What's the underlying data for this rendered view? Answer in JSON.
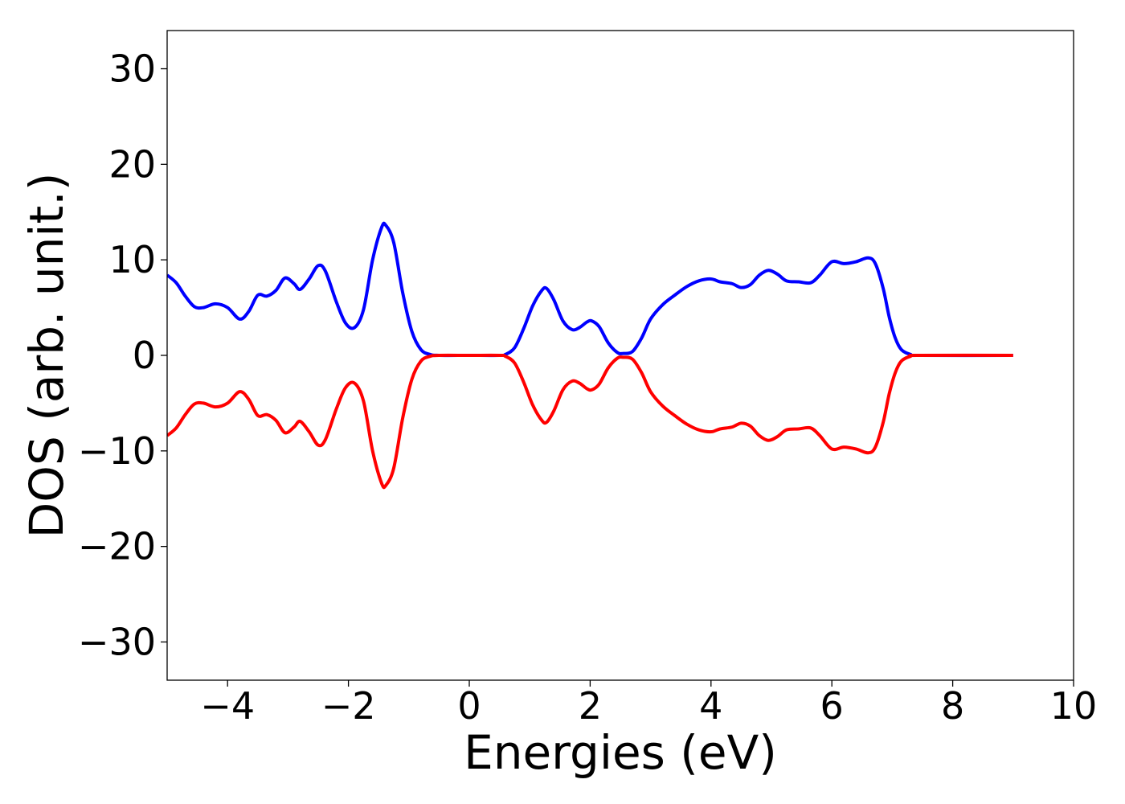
{
  "chart_data": {
    "type": "line",
    "title": "",
    "xlabel": "Energies (eV)",
    "ylabel": "DOS (arb. unit.)",
    "xlim": [
      -5,
      10
    ],
    "ylim": [
      -34,
      34
    ],
    "xticks": [
      -4,
      -2,
      0,
      2,
      4,
      6,
      8,
      10
    ],
    "yticks": [
      -30,
      -20,
      -10,
      0,
      10,
      20,
      30
    ],
    "xtick_labels": [
      "−4",
      "−2",
      "0",
      "2",
      "4",
      "6",
      "8",
      "10"
    ],
    "ytick_labels": [
      "−30",
      "−20",
      "−10",
      "0",
      "10",
      "20",
      "30"
    ],
    "grid": false,
    "legend": "none",
    "series": [
      {
        "color": "#0000ff",
        "points": [
          [
            -5.0,
            8.4
          ],
          [
            -4.85,
            7.6
          ],
          [
            -4.7,
            6.2
          ],
          [
            -4.55,
            5.1
          ],
          [
            -4.4,
            5.0
          ],
          [
            -4.2,
            5.4
          ],
          [
            -4.0,
            5.0
          ],
          [
            -3.8,
            3.8
          ],
          [
            -3.65,
            4.6
          ],
          [
            -3.5,
            6.3
          ],
          [
            -3.35,
            6.2
          ],
          [
            -3.2,
            6.8
          ],
          [
            -3.05,
            8.1
          ],
          [
            -2.9,
            7.5
          ],
          [
            -2.8,
            6.9
          ],
          [
            -2.65,
            8.0
          ],
          [
            -2.5,
            9.4
          ],
          [
            -2.38,
            8.8
          ],
          [
            -2.2,
            5.6
          ],
          [
            -2.05,
            3.4
          ],
          [
            -1.9,
            2.9
          ],
          [
            -1.75,
            4.8
          ],
          [
            -1.6,
            10.0
          ],
          [
            -1.45,
            13.4
          ],
          [
            -1.38,
            13.6
          ],
          [
            -1.25,
            11.8
          ],
          [
            -1.1,
            6.5
          ],
          [
            -0.95,
            2.5
          ],
          [
            -0.8,
            0.6
          ],
          [
            -0.65,
            0.1
          ],
          [
            -0.5,
            0.0
          ],
          [
            0.0,
            0.0
          ],
          [
            0.5,
            0.0
          ],
          [
            0.6,
            0.1
          ],
          [
            0.75,
            0.8
          ],
          [
            0.9,
            2.8
          ],
          [
            1.05,
            5.2
          ],
          [
            1.2,
            6.8
          ],
          [
            1.28,
            7.0
          ],
          [
            1.4,
            5.8
          ],
          [
            1.55,
            3.6
          ],
          [
            1.7,
            2.7
          ],
          [
            1.82,
            2.9
          ],
          [
            1.95,
            3.5
          ],
          [
            2.03,
            3.6
          ],
          [
            2.15,
            3.0
          ],
          [
            2.3,
            1.3
          ],
          [
            2.45,
            0.3
          ],
          [
            2.55,
            0.2
          ],
          [
            2.7,
            0.4
          ],
          [
            2.85,
            1.8
          ],
          [
            3.0,
            3.8
          ],
          [
            3.2,
            5.3
          ],
          [
            3.4,
            6.3
          ],
          [
            3.6,
            7.2
          ],
          [
            3.8,
            7.8
          ],
          [
            4.0,
            8.0
          ],
          [
            4.15,
            7.7
          ],
          [
            4.35,
            7.5
          ],
          [
            4.5,
            7.1
          ],
          [
            4.65,
            7.4
          ],
          [
            4.8,
            8.4
          ],
          [
            4.95,
            8.9
          ],
          [
            5.1,
            8.5
          ],
          [
            5.25,
            7.8
          ],
          [
            5.45,
            7.7
          ],
          [
            5.65,
            7.6
          ],
          [
            5.8,
            8.4
          ],
          [
            6.0,
            9.8
          ],
          [
            6.2,
            9.6
          ],
          [
            6.4,
            9.8
          ],
          [
            6.6,
            10.2
          ],
          [
            6.72,
            9.6
          ],
          [
            6.85,
            7.0
          ],
          [
            6.95,
            4.0
          ],
          [
            7.05,
            1.8
          ],
          [
            7.15,
            0.6
          ],
          [
            7.3,
            0.1
          ],
          [
            7.45,
            0.0
          ],
          [
            9.0,
            0.0
          ]
        ]
      },
      {
        "color": "#ff0000",
        "points": [
          [
            -5.0,
            -8.4
          ],
          [
            -4.85,
            -7.6
          ],
          [
            -4.7,
            -6.2
          ],
          [
            -4.55,
            -5.1
          ],
          [
            -4.4,
            -5.0
          ],
          [
            -4.2,
            -5.4
          ],
          [
            -4.0,
            -5.0
          ],
          [
            -3.8,
            -3.8
          ],
          [
            -3.65,
            -4.6
          ],
          [
            -3.5,
            -6.3
          ],
          [
            -3.35,
            -6.2
          ],
          [
            -3.2,
            -6.8
          ],
          [
            -3.05,
            -8.1
          ],
          [
            -2.9,
            -7.5
          ],
          [
            -2.8,
            -6.9
          ],
          [
            -2.65,
            -8.0
          ],
          [
            -2.5,
            -9.4
          ],
          [
            -2.38,
            -8.8
          ],
          [
            -2.2,
            -5.6
          ],
          [
            -2.05,
            -3.4
          ],
          [
            -1.9,
            -2.9
          ],
          [
            -1.75,
            -4.8
          ],
          [
            -1.6,
            -10.0
          ],
          [
            -1.45,
            -13.4
          ],
          [
            -1.38,
            -13.6
          ],
          [
            -1.25,
            -11.8
          ],
          [
            -1.1,
            -6.5
          ],
          [
            -0.95,
            -2.5
          ],
          [
            -0.8,
            -0.6
          ],
          [
            -0.65,
            -0.1
          ],
          [
            -0.5,
            0.0
          ],
          [
            0.0,
            0.0
          ],
          [
            0.5,
            0.0
          ],
          [
            0.6,
            -0.1
          ],
          [
            0.75,
            -0.8
          ],
          [
            0.9,
            -2.8
          ],
          [
            1.05,
            -5.2
          ],
          [
            1.2,
            -6.8
          ],
          [
            1.28,
            -7.0
          ],
          [
            1.4,
            -5.8
          ],
          [
            1.55,
            -3.6
          ],
          [
            1.7,
            -2.7
          ],
          [
            1.82,
            -2.9
          ],
          [
            1.95,
            -3.5
          ],
          [
            2.03,
            -3.6
          ],
          [
            2.15,
            -3.0
          ],
          [
            2.3,
            -1.3
          ],
          [
            2.45,
            -0.3
          ],
          [
            2.55,
            -0.2
          ],
          [
            2.7,
            -0.4
          ],
          [
            2.85,
            -1.8
          ],
          [
            3.0,
            -3.8
          ],
          [
            3.2,
            -5.3
          ],
          [
            3.4,
            -6.3
          ],
          [
            3.6,
            -7.2
          ],
          [
            3.8,
            -7.8
          ],
          [
            4.0,
            -8.0
          ],
          [
            4.15,
            -7.7
          ],
          [
            4.35,
            -7.5
          ],
          [
            4.5,
            -7.1
          ],
          [
            4.65,
            -7.4
          ],
          [
            4.8,
            -8.4
          ],
          [
            4.95,
            -8.9
          ],
          [
            5.1,
            -8.5
          ],
          [
            5.25,
            -7.8
          ],
          [
            5.45,
            -7.7
          ],
          [
            5.65,
            -7.6
          ],
          [
            5.8,
            -8.4
          ],
          [
            6.0,
            -9.8
          ],
          [
            6.2,
            -9.6
          ],
          [
            6.4,
            -9.8
          ],
          [
            6.6,
            -10.2
          ],
          [
            6.72,
            -9.6
          ],
          [
            6.85,
            -7.0
          ],
          [
            6.95,
            -4.0
          ],
          [
            7.05,
            -1.8
          ],
          [
            7.15,
            -0.6
          ],
          [
            7.3,
            -0.1
          ],
          [
            7.45,
            0.0
          ],
          [
            9.0,
            0.0
          ]
        ]
      }
    ]
  }
}
